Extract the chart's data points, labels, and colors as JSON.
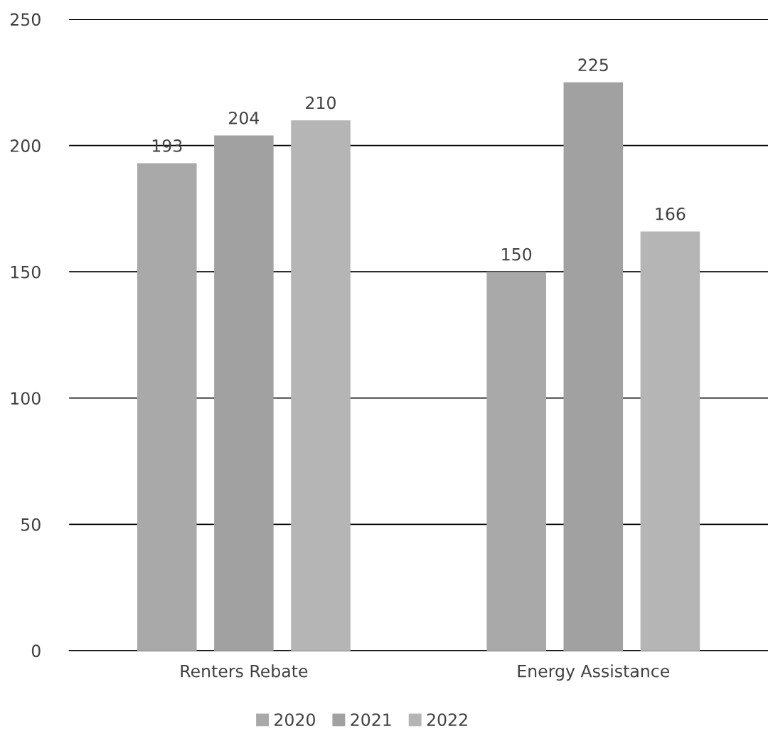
{
  "chart_data": {
    "type": "bar",
    "categories": [
      "Renters Rebate",
      "Energy Assistance"
    ],
    "series": [
      {
        "name": "2020",
        "color": "#a9a9a9",
        "values": [
          193,
          150
        ]
      },
      {
        "name": "2021",
        "color": "#a1a1a1",
        "values": [
          204,
          225
        ]
      },
      {
        "name": "2022",
        "color": "#b5b5b5",
        "values": [
          210,
          166
        ]
      }
    ],
    "ylim": [
      0,
      250
    ],
    "yticks": [
      0,
      50,
      100,
      150,
      200,
      250
    ],
    "grid": "y",
    "legend": "bottom",
    "data_labels": true
  }
}
